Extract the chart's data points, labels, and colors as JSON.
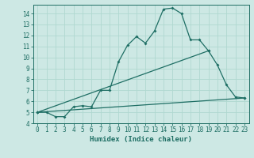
{
  "xlabel": "Humidex (Indice chaleur)",
  "bg_color": "#cde8e4",
  "grid_color": "#b0d8d0",
  "line_color": "#1e6e64",
  "xlim": [
    -0.5,
    23.5
  ],
  "ylim": [
    4,
    14.8
  ],
  "xticks": [
    0,
    1,
    2,
    3,
    4,
    5,
    6,
    7,
    8,
    9,
    10,
    11,
    12,
    13,
    14,
    15,
    16,
    17,
    18,
    19,
    20,
    21,
    22,
    23
  ],
  "yticks": [
    4,
    5,
    6,
    7,
    8,
    9,
    10,
    11,
    12,
    13,
    14
  ],
  "line1_x": [
    0,
    1,
    2,
    3,
    4,
    5,
    6,
    7,
    8,
    9,
    10,
    11,
    12,
    13,
    14,
    15,
    16,
    17,
    18,
    19,
    20,
    21,
    22,
    23
  ],
  "line1_y": [
    5.0,
    5.0,
    4.6,
    4.6,
    5.5,
    5.6,
    5.5,
    7.0,
    7.0,
    9.6,
    11.1,
    11.9,
    11.3,
    12.4,
    14.4,
    14.5,
    14.0,
    11.6,
    11.6,
    10.6,
    9.3,
    7.5,
    6.4,
    6.3
  ],
  "line2_x": [
    0,
    23
  ],
  "line2_y": [
    5.0,
    6.3
  ],
  "line3_x": [
    0,
    19
  ],
  "line3_y": [
    5.0,
    10.6
  ]
}
